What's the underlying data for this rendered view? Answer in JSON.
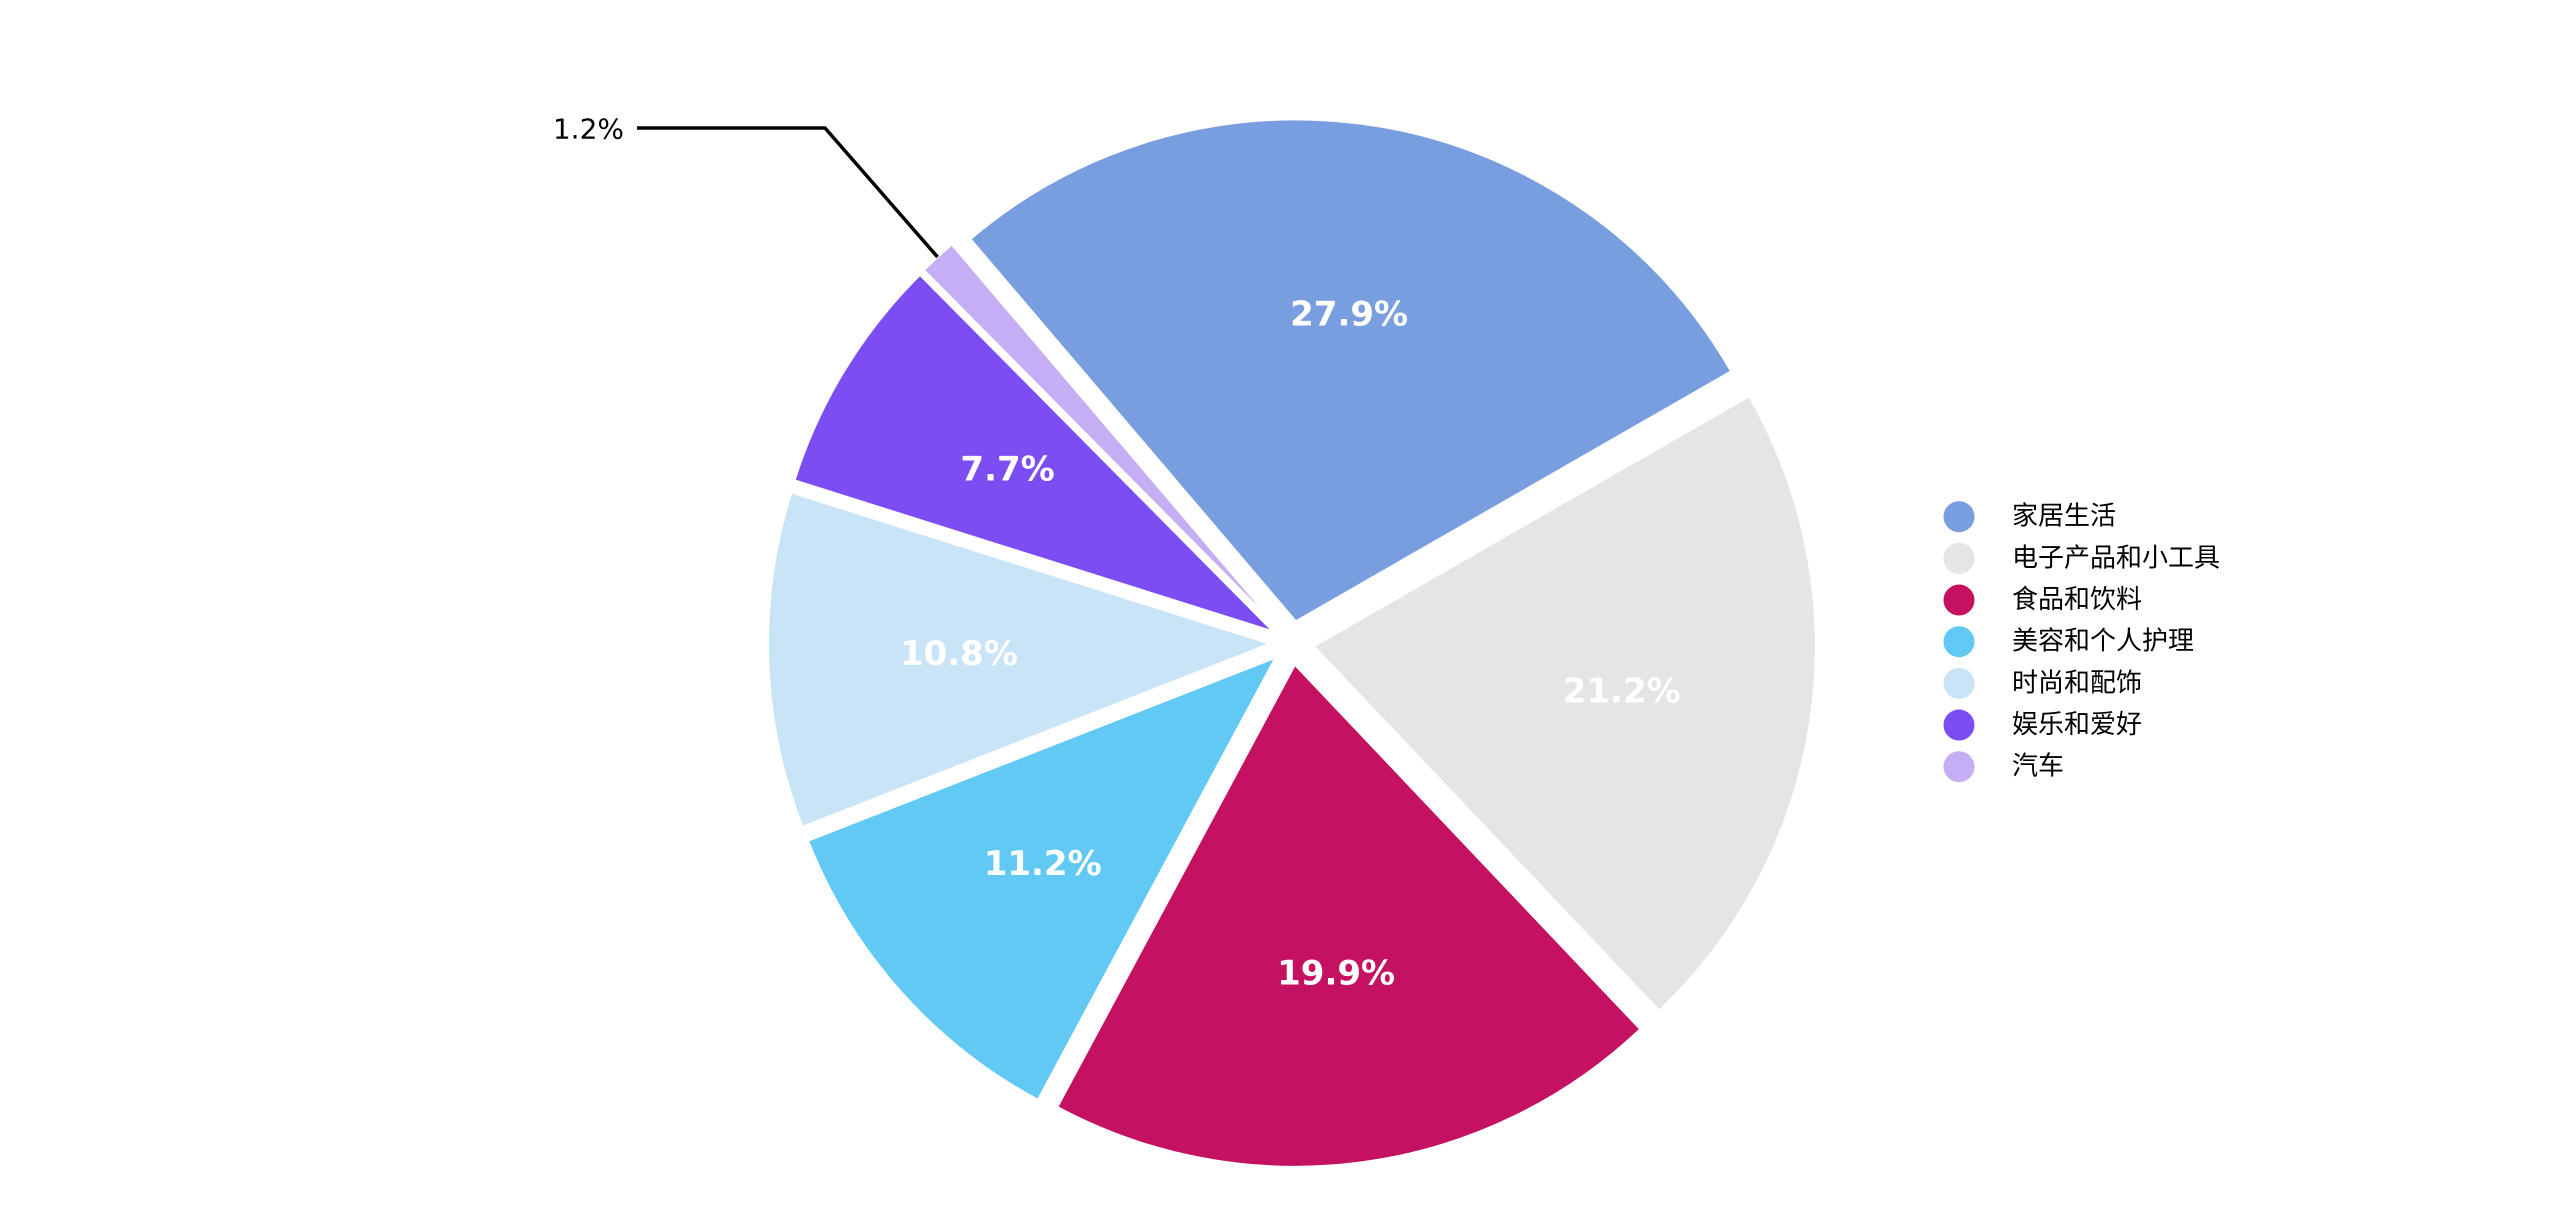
{
  "chart_data": {
    "type": "pie",
    "title": "",
    "legend_position": "right",
    "slices": [
      {
        "id": "home-living",
        "label": "家居生活",
        "value": 27.9,
        "pct_label": "27.9%",
        "color": "#799EDF",
        "label_placement": "inside"
      },
      {
        "id": "electronics-gadgets",
        "label": "电子产品和小工具",
        "value": 21.2,
        "pct_label": "21.2%",
        "color": "#E5E4E6",
        "label_placement": "inside"
      },
      {
        "id": "food-beverage",
        "label": "食品和饮料",
        "value": 19.9,
        "pct_label": "19.9%",
        "color": "#C51162",
        "label_placement": "inside"
      },
      {
        "id": "beauty-personal-care",
        "label": "美容和个人护理",
        "value": 11.2,
        "pct_label": "11.2%",
        "color": "#61C9F4",
        "label_placement": "inside"
      },
      {
        "id": "fashion-accessories",
        "label": "时尚和配饰",
        "value": 10.8,
        "pct_label": "10.8%",
        "color": "#C9E3F7",
        "label_placement": "inside"
      },
      {
        "id": "entertainment-hobbies",
        "label": "娱乐和爱好",
        "value": 7.7,
        "pct_label": "7.7%",
        "color": "#7C4DF3",
        "label_placement": "inside"
      },
      {
        "id": "automotive",
        "label": "汽车",
        "value": 1.2,
        "pct_label": "1.2%",
        "color": "#C6AEF5",
        "label_placement": "callout"
      }
    ],
    "callout": {
      "text": "1.2%",
      "slice_id": "automotive"
    }
  },
  "style": {
    "background": "#FFFFFF",
    "slice_label_color": "#FFFFFF",
    "legend_text_color": "#000000",
    "callout_text_color": "#000000",
    "leader_line_color": "#000000",
    "slice_edge_color": "#FFFFFF"
  }
}
